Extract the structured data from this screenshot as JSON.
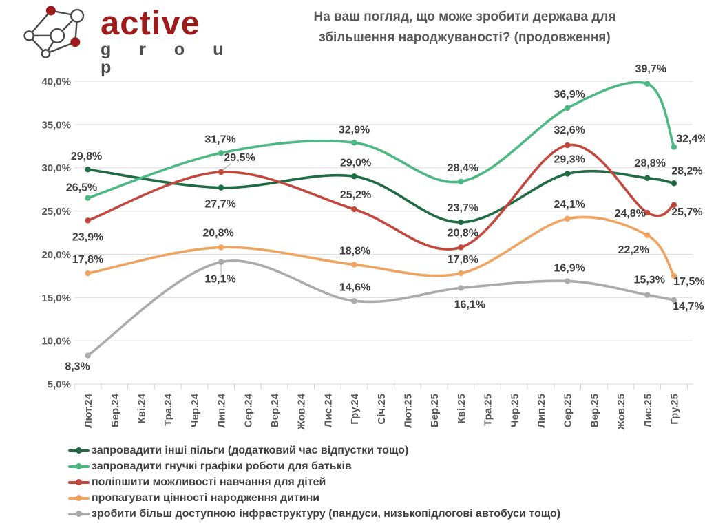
{
  "header": {
    "brand_word_1": "active",
    "brand_word_2": "g r o u p",
    "title_line_1": "На ваш погляд, що може зробити держава для",
    "title_line_2": "збільшення народжуваності? (продовження)"
  },
  "ui_colors": {
    "brand_red": "#9e1b1b",
    "brand_gray": "#4d4d4d",
    "title_text": "#595959",
    "axis_text": "#595959",
    "data_label_text": "#3d3d3d",
    "gridline": "#d9d9d9",
    "tick_mark": "#d0d0d0",
    "leader_line": "#999999"
  },
  "chart_data": {
    "type": "line",
    "title": "На ваш погляд, що може зробити держава для збільшення народжуваності? (продовження)",
    "xlabel": "",
    "ylabel": "",
    "grid": true,
    "legend_position": "bottom-left",
    "ylim": [
      5,
      40
    ],
    "y_tick_values": [
      40,
      35,
      30,
      25,
      20,
      15,
      10,
      5
    ],
    "y_tick_labels": [
      "40,0%",
      "35,0%",
      "30,0%",
      "25,0%",
      "20,0%",
      "15,0%",
      "10,0%",
      "5,0%"
    ],
    "x_axis_months": [
      "Лют.24",
      "Бер.24",
      "Кві.24",
      "Тра.24",
      "Чер.24",
      "Лип.24",
      "Сер.24",
      "Вер.24",
      "Жов.24",
      "Лис.24",
      "Гру.24",
      "Січ.25",
      "Лют.25",
      "Бер.25",
      "Кві.25",
      "Тра.25",
      "Чер.25",
      "Лип.25",
      "Сер.25",
      "Вер.25",
      "Жов.25",
      "Лис.25",
      "Гру.25"
    ],
    "wave_months": [
      "Лют.24",
      "Лип.24",
      "Гру.24",
      "Кві.25",
      "Сер.25",
      "Лис.25",
      "Гру.25"
    ],
    "wave_month_indices": [
      0,
      5,
      10,
      14,
      18,
      21,
      22
    ],
    "series": [
      {
        "name": "запровадити інші пільги (додатковий час відпустки тощо)",
        "color": "#1e6b44",
        "values": [
          29.8,
          27.7,
          29.0,
          23.7,
          29.3,
          28.8,
          28.2
        ],
        "point_labels": [
          "29,8%",
          "27,7%",
          "29,0%",
          "23,7%",
          "29,3%",
          "28,8%",
          "28,2%"
        ]
      },
      {
        "name": "запровадити гнучкі графіки роботи для батьків",
        "color": "#4cb983",
        "values": [
          26.5,
          31.7,
          32.9,
          28.4,
          36.9,
          39.7,
          32.4
        ],
        "point_labels": [
          "26,5%",
          "31,7%",
          "32,9%",
          "28,4%",
          "36,9%",
          "39,7%",
          "32,4%"
        ]
      },
      {
        "name": "поліпшити можливості навчання для дітей",
        "color": "#c4473d",
        "values": [
          23.9,
          29.5,
          25.2,
          20.8,
          32.6,
          24.8,
          25.7
        ],
        "point_labels": [
          "23,9%",
          "29,5%",
          "25,2%",
          "20,8%",
          "32,6%",
          "24,8%",
          "25,7%"
        ]
      },
      {
        "name": "пропагувати цінності народження дитини",
        "color": "#f0a35f",
        "values": [
          17.8,
          20.8,
          18.8,
          17.8,
          24.1,
          22.2,
          17.5
        ],
        "point_labels": [
          "17,8%",
          "20,8%",
          "18,8%",
          "17,8%",
          "24,1%",
          "22,2%",
          "17,5%"
        ]
      },
      {
        "name": "зробити більш доступною інфраструктуру (пандуси, низькопідлогові автобуси тощо)",
        "color": "#ababab",
        "values": [
          8.3,
          19.1,
          14.6,
          16.1,
          16.9,
          15.3,
          14.7
        ],
        "point_labels": [
          "8,3%",
          "19,1%",
          "14,6%",
          "16,1%",
          "16,9%",
          "15,3%",
          "14,7%"
        ]
      }
    ]
  }
}
